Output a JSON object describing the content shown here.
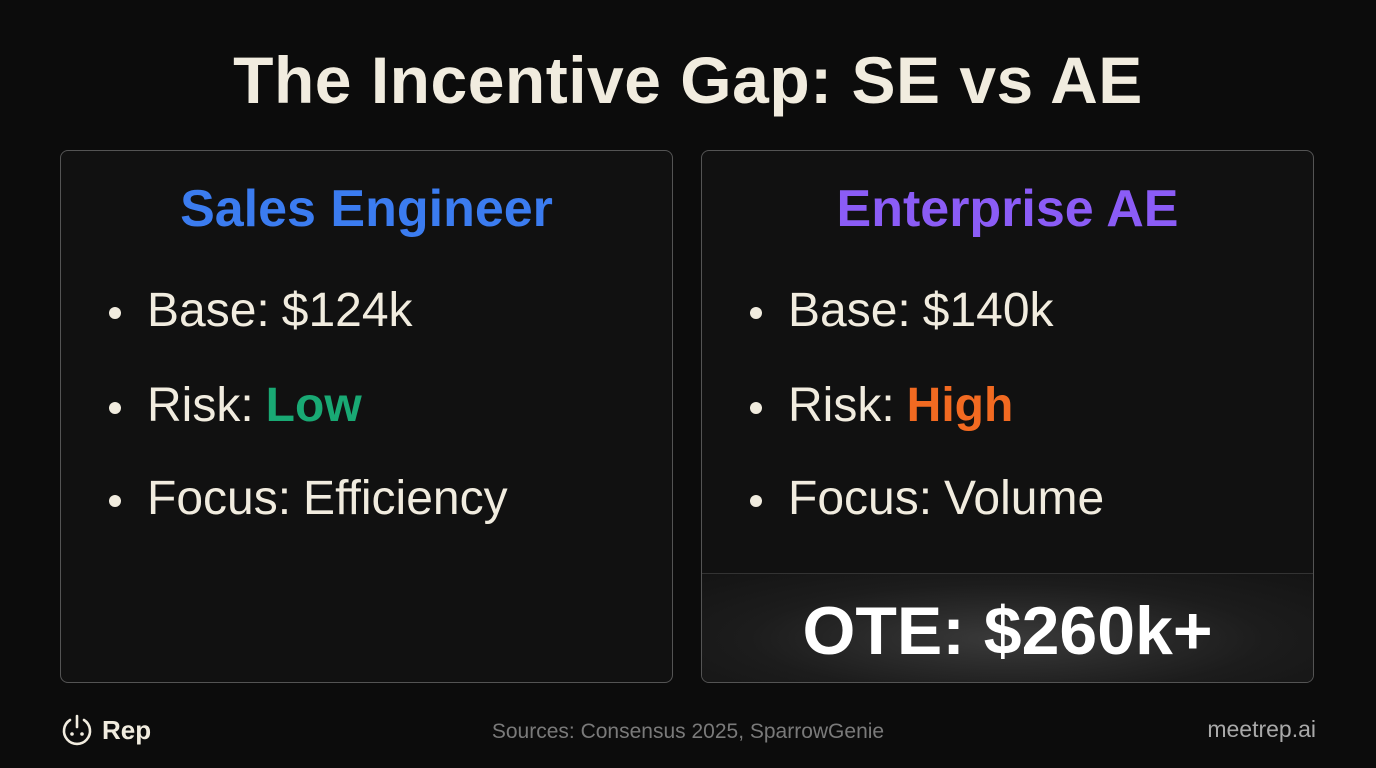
{
  "title": "The Incentive Gap: SE vs AE",
  "cards": [
    {
      "heading": "Sales Engineer",
      "items": [
        {
          "label": "Base:",
          "value": "$124k"
        },
        {
          "label": "Risk:",
          "value": "Low"
        },
        {
          "label": "Focus:",
          "value": "Efficiency"
        }
      ]
    },
    {
      "heading": "Enterprise AE",
      "items": [
        {
          "label": "Base:",
          "value": "$140k"
        },
        {
          "label": "Risk:",
          "value": "High"
        },
        {
          "label": "Focus:",
          "value": "Volume"
        }
      ],
      "highlight": "OTE: $260k+"
    }
  ],
  "footer": {
    "brand": "Rep",
    "sources": "Sources: Consensus 2025, SparrowGenie",
    "site": "meetrep.ai"
  }
}
